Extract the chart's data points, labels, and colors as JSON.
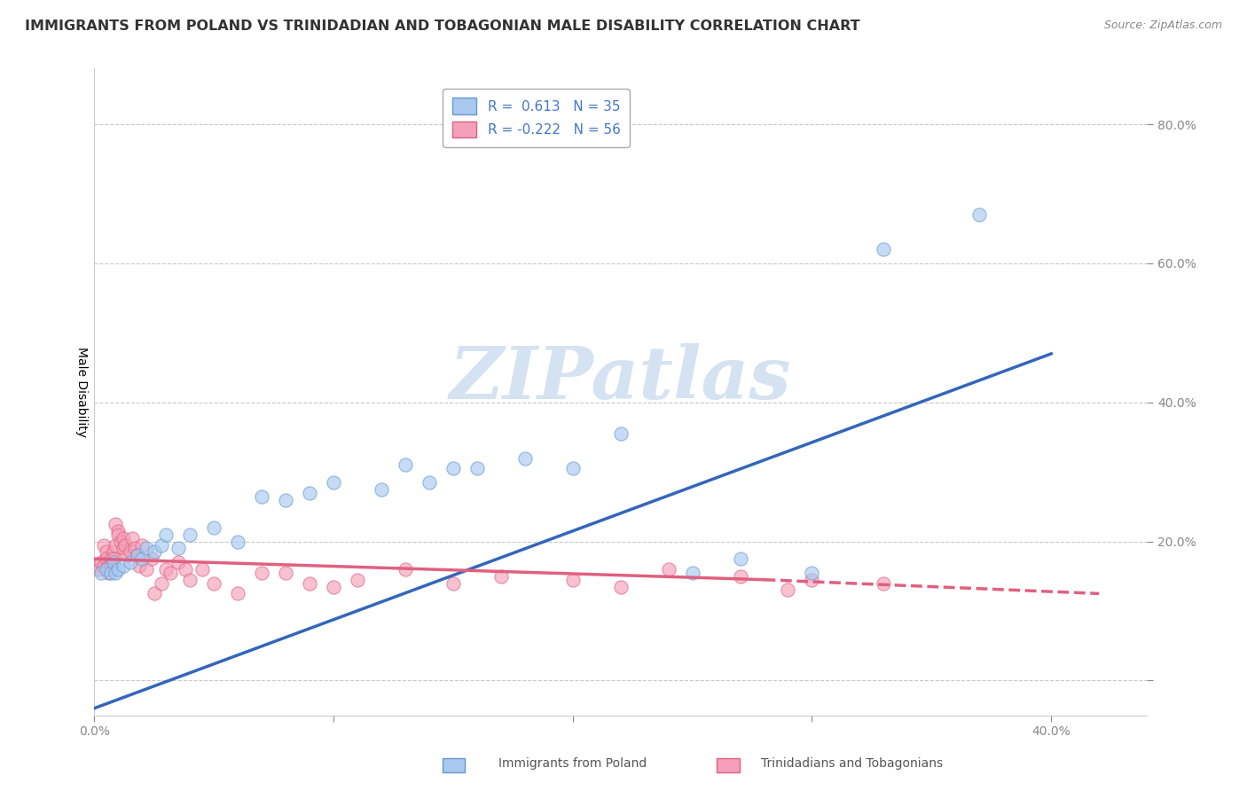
{
  "title": "IMMIGRANTS FROM POLAND VS TRINIDADIAN AND TOBAGONIAN MALE DISABILITY CORRELATION CHART",
  "source": "Source: ZipAtlas.com",
  "ylabel": "Male Disability",
  "xlim": [
    0.0,
    0.44
  ],
  "ylim": [
    -0.05,
    0.88
  ],
  "yticks": [
    0.0,
    0.2,
    0.4,
    0.6,
    0.8
  ],
  "ytick_labels": [
    "",
    "20.0%",
    "40.0%",
    "60.0%",
    "80.0%"
  ],
  "xticks": [
    0.0,
    0.1,
    0.2,
    0.3,
    0.4
  ],
  "xtick_labels": [
    "0.0%",
    "",
    "",
    "",
    "40.0%"
  ],
  "blue_scatter": [
    [
      0.003,
      0.155
    ],
    [
      0.005,
      0.16
    ],
    [
      0.007,
      0.155
    ],
    [
      0.008,
      0.17
    ],
    [
      0.009,
      0.155
    ],
    [
      0.01,
      0.16
    ],
    [
      0.012,
      0.165
    ],
    [
      0.015,
      0.17
    ],
    [
      0.018,
      0.18
    ],
    [
      0.02,
      0.175
    ],
    [
      0.022,
      0.19
    ],
    [
      0.025,
      0.185
    ],
    [
      0.028,
      0.195
    ],
    [
      0.03,
      0.21
    ],
    [
      0.035,
      0.19
    ],
    [
      0.04,
      0.21
    ],
    [
      0.05,
      0.22
    ],
    [
      0.06,
      0.2
    ],
    [
      0.07,
      0.265
    ],
    [
      0.08,
      0.26
    ],
    [
      0.09,
      0.27
    ],
    [
      0.1,
      0.285
    ],
    [
      0.12,
      0.275
    ],
    [
      0.13,
      0.31
    ],
    [
      0.14,
      0.285
    ],
    [
      0.15,
      0.305
    ],
    [
      0.16,
      0.305
    ],
    [
      0.18,
      0.32
    ],
    [
      0.2,
      0.305
    ],
    [
      0.22,
      0.355
    ],
    [
      0.25,
      0.155
    ],
    [
      0.27,
      0.175
    ],
    [
      0.3,
      0.155
    ],
    [
      0.33,
      0.62
    ],
    [
      0.37,
      0.67
    ]
  ],
  "pink_scatter": [
    [
      0.001,
      0.165
    ],
    [
      0.002,
      0.16
    ],
    [
      0.003,
      0.17
    ],
    [
      0.004,
      0.165
    ],
    [
      0.004,
      0.195
    ],
    [
      0.005,
      0.185
    ],
    [
      0.005,
      0.175
    ],
    [
      0.006,
      0.165
    ],
    [
      0.006,
      0.155
    ],
    [
      0.007,
      0.175
    ],
    [
      0.007,
      0.165
    ],
    [
      0.008,
      0.185
    ],
    [
      0.008,
      0.175
    ],
    [
      0.009,
      0.225
    ],
    [
      0.009,
      0.195
    ],
    [
      0.01,
      0.215
    ],
    [
      0.01,
      0.21
    ],
    [
      0.011,
      0.2
    ],
    [
      0.012,
      0.19
    ],
    [
      0.012,
      0.205
    ],
    [
      0.013,
      0.195
    ],
    [
      0.014,
      0.18
    ],
    [
      0.015,
      0.185
    ],
    [
      0.016,
      0.205
    ],
    [
      0.017,
      0.19
    ],
    [
      0.018,
      0.18
    ],
    [
      0.019,
      0.165
    ],
    [
      0.02,
      0.195
    ],
    [
      0.022,
      0.16
    ],
    [
      0.024,
      0.175
    ],
    [
      0.025,
      0.125
    ],
    [
      0.028,
      0.14
    ],
    [
      0.03,
      0.16
    ],
    [
      0.032,
      0.155
    ],
    [
      0.035,
      0.17
    ],
    [
      0.038,
      0.16
    ],
    [
      0.04,
      0.145
    ],
    [
      0.045,
      0.16
    ],
    [
      0.05,
      0.14
    ],
    [
      0.06,
      0.125
    ],
    [
      0.07,
      0.155
    ],
    [
      0.08,
      0.155
    ],
    [
      0.09,
      0.14
    ],
    [
      0.1,
      0.135
    ],
    [
      0.11,
      0.145
    ],
    [
      0.13,
      0.16
    ],
    [
      0.15,
      0.14
    ],
    [
      0.17,
      0.15
    ],
    [
      0.2,
      0.145
    ],
    [
      0.22,
      0.135
    ],
    [
      0.24,
      0.16
    ],
    [
      0.27,
      0.15
    ],
    [
      0.29,
      0.13
    ],
    [
      0.3,
      0.145
    ],
    [
      0.33,
      0.14
    ]
  ],
  "blue_line": {
    "x": [
      0.0,
      0.4
    ],
    "y": [
      -0.04,
      0.47
    ]
  },
  "pink_line_solid": {
    "x": [
      0.0,
      0.28
    ],
    "y": [
      0.175,
      0.145
    ]
  },
  "pink_line_dash": {
    "x": [
      0.28,
      0.42
    ],
    "y": [
      0.145,
      0.125
    ]
  },
  "blue_color": "#a8c8f0",
  "blue_edge_color": "#6699cc",
  "pink_color": "#f4a0b8",
  "pink_edge_color": "#e06080",
  "blue_line_color": "#3366bb",
  "pink_line_color": "#e06080",
  "background_color": "#ffffff",
  "grid_color": "#bbbbbb",
  "watermark_text": "ZIPatlas",
  "watermark_color": "#d0dff0",
  "title_fontsize": 11.5,
  "label_fontsize": 10,
  "tick_fontsize": 10
}
